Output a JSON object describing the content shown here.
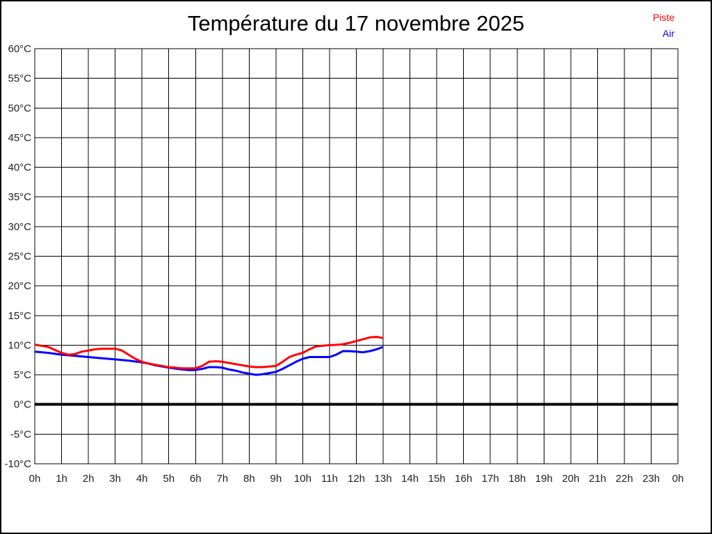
{
  "title": "Température du 17 novembre 2025",
  "legend": {
    "items": [
      {
        "label": "Piste",
        "color": "#ff0000"
      },
      {
        "label": "Air",
        "color": "#0000ff"
      }
    ]
  },
  "colors": {
    "background": "#ffffff",
    "frame": "#000000",
    "grid": "#000000",
    "axis_text": "#222222",
    "zero_line": "#000000"
  },
  "chart_data": {
    "type": "line",
    "title": "Température du 17 novembre 2025",
    "xlabel": "",
    "ylabel": "",
    "xlim": [
      0,
      24
    ],
    "ylim": [
      -10,
      60
    ],
    "y_tick_step": 5,
    "y_tick_suffix": "°C",
    "x_tick_labels": [
      "0h",
      "1h",
      "2h",
      "3h",
      "4h",
      "5h",
      "6h",
      "7h",
      "8h",
      "9h",
      "10h",
      "11h",
      "12h",
      "13h",
      "14h",
      "15h",
      "16h",
      "17h",
      "18h",
      "19h",
      "20h",
      "21h",
      "22h",
      "23h",
      "0h"
    ],
    "grid": true,
    "zero_line_value": 0,
    "legend_position": "top-right",
    "series": [
      {
        "name": "Piste",
        "color": "#ff0000",
        "x": [
          0,
          0.25,
          0.5,
          0.75,
          1,
          1.25,
          1.5,
          1.75,
          2,
          2.25,
          2.5,
          2.75,
          3,
          3.25,
          3.5,
          3.75,
          4,
          4.25,
          4.5,
          4.75,
          5,
          5.25,
          5.5,
          5.75,
          6,
          6.25,
          6.5,
          6.75,
          7,
          7.25,
          7.5,
          7.75,
          8,
          8.25,
          8.5,
          8.75,
          9,
          9.25,
          9.5,
          9.75,
          10,
          10.25,
          10.5,
          10.75,
          11,
          11.25,
          11.5,
          11.75,
          12,
          12.25,
          12.5,
          12.75,
          13
        ],
        "y": [
          10.1,
          9.9,
          9.7,
          9.2,
          8.7,
          8.4,
          8.5,
          8.9,
          9.1,
          9.3,
          9.4,
          9.4,
          9.4,
          9.1,
          8.4,
          7.7,
          7.2,
          6.9,
          6.7,
          6.5,
          6.3,
          6.2,
          6.1,
          6.1,
          6.1,
          6.5,
          7.2,
          7.3,
          7.2,
          7.0,
          6.8,
          6.6,
          6.4,
          6.3,
          6.3,
          6.4,
          6.5,
          7.2,
          8.0,
          8.4,
          8.7,
          9.3,
          9.8,
          9.9,
          10.0,
          10.05,
          10.15,
          10.4,
          10.7,
          11.0,
          11.3,
          11.4,
          11.2
        ]
      },
      {
        "name": "Air",
        "color": "#0000ff",
        "x": [
          0,
          0.5,
          1,
          1.5,
          2,
          2.5,
          3,
          3.5,
          4,
          4.25,
          4.5,
          5,
          5.5,
          5.75,
          6,
          6.25,
          6.5,
          6.75,
          7,
          7.25,
          7.5,
          7.75,
          8,
          8.25,
          8.5,
          8.75,
          9,
          9.25,
          9.5,
          9.75,
          10,
          10.25,
          10.5,
          11,
          11.25,
          11.5,
          11.75,
          12,
          12.25,
          12.5,
          12.75,
          13
        ],
        "y": [
          8.9,
          8.7,
          8.4,
          8.2,
          8.0,
          7.8,
          7.6,
          7.4,
          7.1,
          6.9,
          6.6,
          6.2,
          5.9,
          5.8,
          5.8,
          6.0,
          6.3,
          6.3,
          6.2,
          5.9,
          5.7,
          5.4,
          5.2,
          5.0,
          5.1,
          5.3,
          5.5,
          6.0,
          6.6,
          7.2,
          7.7,
          8.0,
          8.0,
          8.0,
          8.4,
          9.0,
          9.0,
          8.9,
          8.8,
          9.0,
          9.3,
          9.7
        ]
      }
    ]
  }
}
